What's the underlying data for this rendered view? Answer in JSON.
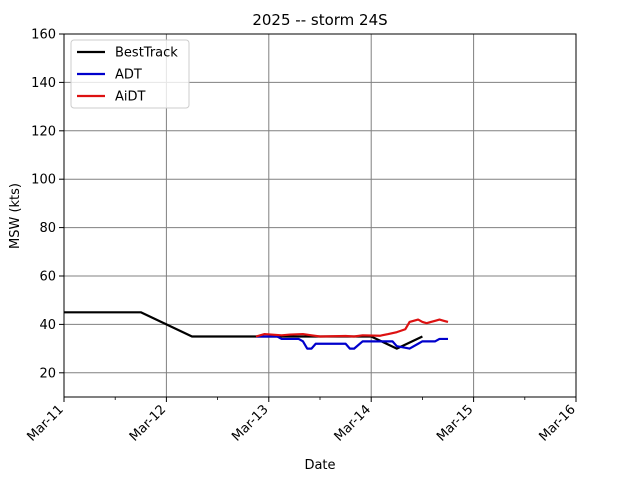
{
  "chart_data": {
    "type": "line",
    "title": "2025 -- storm 24S",
    "xlabel": "Date",
    "ylabel": "MSW (kts)",
    "xlim": [
      "2025-03-11T00:00",
      "2025-03-16T00:00"
    ],
    "ylim": [
      10,
      160
    ],
    "x_ticks": [
      "2025-03-11T00:00",
      "2025-03-12T00:00",
      "2025-03-13T00:00",
      "2025-03-14T00:00",
      "2025-03-15T00:00",
      "2025-03-16T00:00"
    ],
    "x_tick_labels": [
      "Mar-11",
      "Mar-12",
      "Mar-13",
      "Mar-14",
      "Mar-15",
      "Mar-16"
    ],
    "y_ticks": [
      20,
      40,
      60,
      80,
      100,
      120,
      140,
      160
    ],
    "y_tick_labels": [
      "20",
      "40",
      "60",
      "80",
      "100",
      "120",
      "140",
      "160"
    ],
    "grid": true,
    "legend_position": "top-left",
    "series": [
      {
        "name": "BestTrack",
        "color": "#000000",
        "points": [
          [
            "2025-03-11T00:00",
            45
          ],
          [
            "2025-03-11T18:00",
            45
          ],
          [
            "2025-03-12T06:00",
            35
          ],
          [
            "2025-03-12T18:00",
            35
          ],
          [
            "2025-03-13T06:00",
            35
          ],
          [
            "2025-03-13T18:00",
            35
          ],
          [
            "2025-03-14T00:00",
            35
          ],
          [
            "2025-03-14T06:00",
            30
          ],
          [
            "2025-03-14T12:00",
            35
          ]
        ]
      },
      {
        "name": "ADT",
        "color": "#0000cc",
        "points": [
          [
            "2025-03-12T21:00",
            35
          ],
          [
            "2025-03-13T02:00",
            35
          ],
          [
            "2025-03-13T03:00",
            34
          ],
          [
            "2025-03-13T07:00",
            34
          ],
          [
            "2025-03-13T08:00",
            33
          ],
          [
            "2025-03-13T09:00",
            30
          ],
          [
            "2025-03-13T10:00",
            30
          ],
          [
            "2025-03-13T11:00",
            32
          ],
          [
            "2025-03-13T18:00",
            32
          ],
          [
            "2025-03-13T19:00",
            30
          ],
          [
            "2025-03-13T20:00",
            30
          ],
          [
            "2025-03-13T22:00",
            33
          ],
          [
            "2025-03-14T05:00",
            33
          ],
          [
            "2025-03-14T06:00",
            31
          ],
          [
            "2025-03-14T09:00",
            30
          ],
          [
            "2025-03-14T11:00",
            32
          ],
          [
            "2025-03-14T12:00",
            33
          ],
          [
            "2025-03-14T15:00",
            33
          ],
          [
            "2025-03-14T16:00",
            34
          ],
          [
            "2025-03-14T18:00",
            34
          ]
        ]
      },
      {
        "name": "AiDT",
        "color": "#dd1111",
        "points": [
          [
            "2025-03-12T21:00",
            35
          ],
          [
            "2025-03-12T23:00",
            36
          ],
          [
            "2025-03-13T03:00",
            35.5
          ],
          [
            "2025-03-13T05:00",
            35.8
          ],
          [
            "2025-03-13T08:00",
            36
          ],
          [
            "2025-03-13T10:00",
            35.5
          ],
          [
            "2025-03-13T12:00",
            35
          ],
          [
            "2025-03-13T18:00",
            35.2
          ],
          [
            "2025-03-13T20:00",
            35
          ],
          [
            "2025-03-13T22:00",
            35.5
          ],
          [
            "2025-03-14T02:00",
            35.3
          ],
          [
            "2025-03-14T04:00",
            36
          ],
          [
            "2025-03-14T06:00",
            36.8
          ],
          [
            "2025-03-14T08:00",
            38
          ],
          [
            "2025-03-14T09:00",
            41
          ],
          [
            "2025-03-14T11:00",
            42
          ],
          [
            "2025-03-14T12:00",
            41
          ],
          [
            "2025-03-14T13:00",
            40.5
          ],
          [
            "2025-03-14T14:00",
            41
          ],
          [
            "2025-03-14T15:00",
            41.5
          ],
          [
            "2025-03-14T16:00",
            42
          ],
          [
            "2025-03-14T17:00",
            41.5
          ],
          [
            "2025-03-14T18:00",
            41
          ]
        ]
      }
    ]
  }
}
